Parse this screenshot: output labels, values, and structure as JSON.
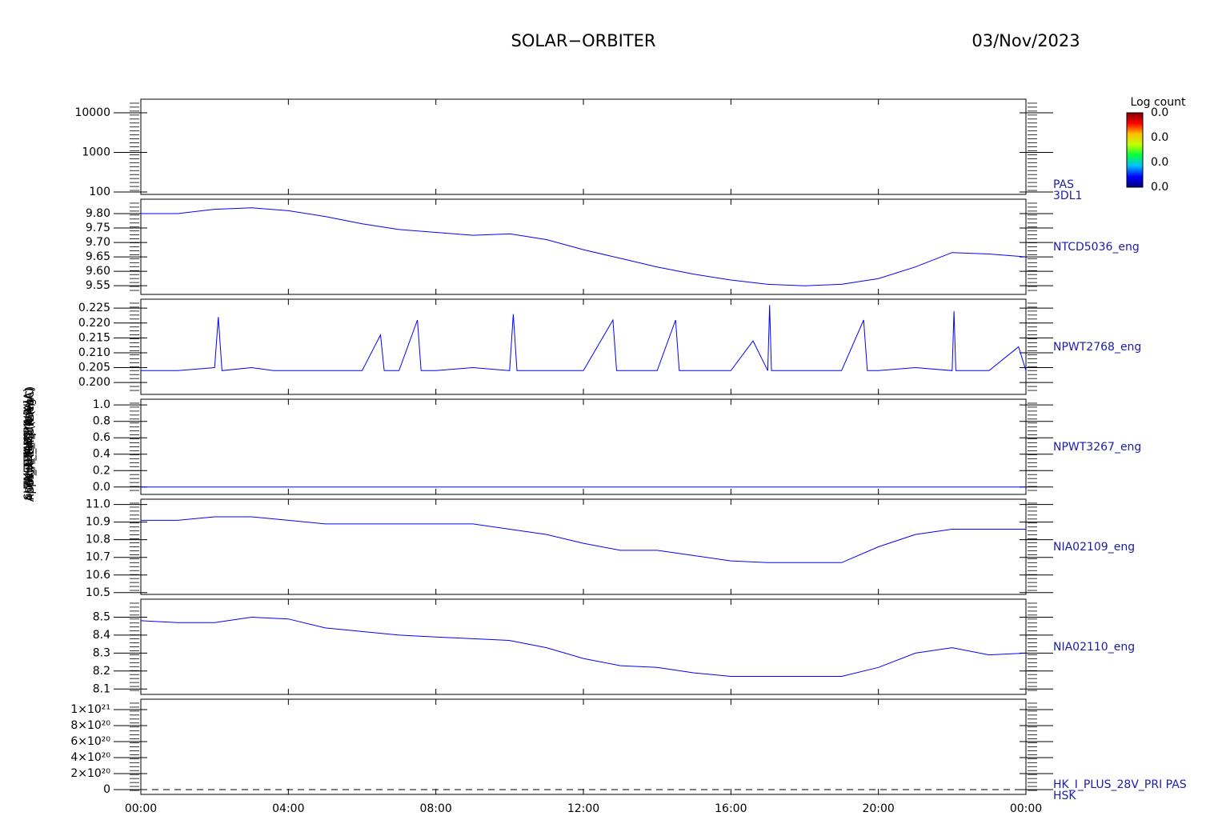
{
  "title": "SOLAR−ORBITER",
  "date": "03/Nov/2023",
  "x_axis": {
    "xlim": [
      0,
      24
    ],
    "xticks": [
      {
        "value": 0,
        "label": "00:00"
      },
      {
        "value": 4,
        "label": "04:00"
      },
      {
        "value": 8,
        "label": "08:00"
      },
      {
        "value": 12,
        "label": "12:00"
      },
      {
        "value": 16,
        "label": "16:00"
      },
      {
        "value": 20,
        "label": "20:00"
      },
      {
        "value": 24,
        "label": "00:00"
      }
    ]
  },
  "colorbar": {
    "title": "Log count",
    "ticks": [
      "0.0",
      "0.0",
      "0.0",
      "0.0"
    ],
    "colors": [
      "#000080",
      "#0000ff",
      "#00c0ff",
      "#00ff40",
      "#c0ff00",
      "#ffc000",
      "#ff0000",
      "#800000"
    ]
  },
  "chart_data": [
    {
      "type": "spectrogram",
      "y_label": "(eV)",
      "label": [
        "PAS",
        "3DL1"
      ],
      "log_scale": true,
      "ylim": [
        87,
        22000
      ],
      "yticks": [
        100,
        1000,
        10000
      ]
    },
    {
      "type": "line",
      "y_label": "Approx Temp (DegC)",
      "label": [
        "NTCD5036_eng"
      ],
      "ylim": [
        9.52,
        9.85
      ],
      "yticks": [
        9.55,
        {
          "value": 9.6,
          "label": "9.60"
        },
        9.65,
        {
          "value": 9.7,
          "label": "9.70"
        },
        9.75,
        {
          "value": 9.8,
          "label": "9.80"
        }
      ],
      "series": [
        {
          "color": "#0000ff",
          "x": [
            0,
            1,
            2,
            3,
            4,
            5,
            6,
            7,
            8,
            9,
            10,
            11,
            12,
            13,
            14,
            15,
            16,
            17,
            18,
            19,
            20,
            21,
            22,
            23,
            24
          ],
          "values": [
            9.8,
            9.8,
            9.815,
            9.82,
            9.81,
            9.79,
            9.765,
            9.745,
            9.735,
            9.725,
            9.73,
            9.71,
            9.675,
            9.645,
            9.615,
            9.59,
            9.57,
            9.555,
            9.55,
            9.555,
            9.575,
            9.615,
            9.665,
            9.66,
            9.65
          ]
        }
      ]
    },
    {
      "type": "line",
      "y_label": "SWA_TEMP_PWR (A)",
      "label": [
        "NPWT2768_eng"
      ],
      "ylim": [
        0.196,
        0.228
      ],
      "yticks": [
        {
          "value": 0.2,
          "label": "0.200"
        },
        0.205,
        {
          "value": 0.21,
          "label": "0.210"
        },
        0.215,
        {
          "value": 0.22,
          "label": "0.220"
        },
        0.225
      ],
      "series": [
        {
          "color": "#0000ff",
          "x": [
            0,
            1,
            2,
            2.1,
            2.2,
            3,
            3.6,
            4,
            5,
            6,
            6.5,
            6.6,
            7,
            7.5,
            7.6,
            8,
            9,
            10,
            10.1,
            10.2,
            11,
            12,
            12.8,
            12.9,
            13,
            14,
            14.5,
            14.6,
            15,
            16,
            16.6,
            17,
            17.05,
            17.1,
            18,
            19,
            19.6,
            19.7,
            20,
            21,
            22,
            22.05,
            22.1,
            23,
            23.8,
            24
          ],
          "values": [
            0.204,
            0.204,
            0.205,
            0.222,
            0.204,
            0.205,
            0.204,
            0.204,
            0.204,
            0.204,
            0.216,
            0.204,
            0.204,
            0.221,
            0.204,
            0.204,
            0.205,
            0.204,
            0.223,
            0.204,
            0.204,
            0.204,
            0.221,
            0.204,
            0.204,
            0.204,
            0.221,
            0.204,
            0.204,
            0.204,
            0.214,
            0.204,
            0.226,
            0.204,
            0.204,
            0.204,
            0.221,
            0.204,
            0.204,
            0.205,
            0.204,
            0.224,
            0.204,
            0.204,
            0.212,
            0.204
          ]
        }
      ]
    },
    {
      "type": "line",
      "y_label": "SWA_EAS (mA)",
      "label": [
        "NPWT3267_eng"
      ],
      "ylim": [
        -0.09,
        1.07
      ],
      "yticks": [
        {
          "value": 0,
          "label": "0.0"
        },
        {
          "value": 0.2,
          "label": "0.2"
        },
        {
          "value": 0.4,
          "label": "0.4"
        },
        {
          "value": 0.6,
          "label": "0.6"
        },
        {
          "value": 0.8,
          "label": "0.8"
        },
        {
          "value": 1,
          "label": "1.0"
        }
      ],
      "series": [
        {
          "color": "#0000ff",
          "x": [
            0,
            24
          ],
          "values": [
            0,
            0
          ]
        }
      ]
    },
    {
      "type": "line",
      "y_label": "THERM_CH4 (V)",
      "label": [
        "NIA02109_eng"
      ],
      "ylim": [
        10.49,
        11.03
      ],
      "yticks": [
        10.5,
        10.6,
        10.7,
        10.8,
        10.9,
        {
          "value": 11,
          "label": "11.0"
        }
      ],
      "series": [
        {
          "color": "#0000ff",
          "x": [
            0,
            1,
            2,
            3,
            4,
            5,
            6,
            7,
            8,
            9,
            10,
            11,
            12,
            13,
            14,
            15,
            16,
            17,
            18,
            19,
            20,
            21,
            22,
            23,
            24
          ],
          "values": [
            10.91,
            10.91,
            10.93,
            10.93,
            10.91,
            10.89,
            10.89,
            10.89,
            10.89,
            10.89,
            10.86,
            10.83,
            10.78,
            10.74,
            10.74,
            10.71,
            10.68,
            10.67,
            10.67,
            10.67,
            10.76,
            10.83,
            10.86,
            10.86,
            10.86
          ]
        }
      ]
    },
    {
      "type": "line",
      "y_label": "PDM_HK_IMON (mA)",
      "label": [
        "NIA02110_eng"
      ],
      "ylim": [
        8.07,
        8.6
      ],
      "yticks": [
        8.1,
        8.2,
        8.3,
        8.4,
        8.5
      ],
      "series": [
        {
          "color": "#0000ff",
          "x": [
            0,
            1,
            2,
            3,
            4,
            5,
            6,
            7,
            8,
            9,
            10,
            11,
            12,
            13,
            14,
            15,
            16,
            17,
            18,
            19,
            20,
            21,
            22,
            23,
            24
          ],
          "values": [
            8.48,
            8.47,
            8.47,
            8.5,
            8.49,
            8.44,
            8.42,
            8.4,
            8.39,
            8.38,
            8.37,
            8.33,
            8.27,
            8.23,
            8.22,
            8.19,
            8.17,
            8.17,
            8.17,
            8.17,
            8.22,
            8.3,
            8.33,
            8.29,
            8.3
          ]
        }
      ]
    },
    {
      "type": "line",
      "y_label": "HK_I_PLUS (mA)",
      "label": [
        "HK_I_PLUS_28V_PRI PAS",
        "HSK"
      ],
      "dashed": true,
      "ylim": [
        -6e+19,
        1.13e+21
      ],
      "yticks": [
        0,
        {
          "value": 2e+20,
          "label": "2×10²⁰"
        },
        {
          "value": 4e+20,
          "label": "4×10²⁰"
        },
        {
          "value": 6e+20,
          "label": "6×10²⁰"
        },
        {
          "value": 8e+20,
          "label": "8×10²⁰"
        },
        {
          "value": 1e+21,
          "label": "1×10²¹"
        }
      ],
      "series": [
        {
          "color": "#000000",
          "x": [
            0,
            24
          ],
          "values": [
            0,
            0
          ]
        }
      ]
    }
  ]
}
